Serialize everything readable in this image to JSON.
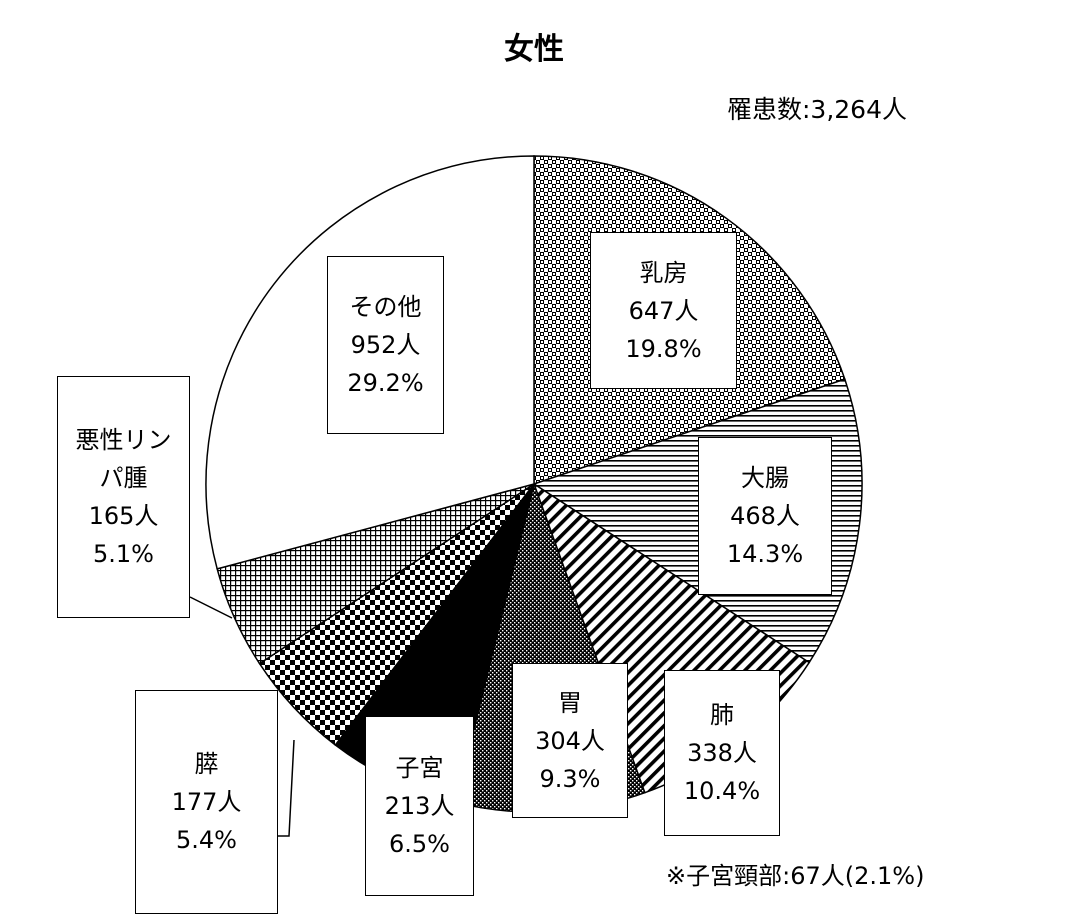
{
  "chart_data": {
    "type": "pie",
    "title": "女性",
    "total_label": "罹患数:3,264人",
    "footnote": "※子宮頸部:67人(2.1%)",
    "slices": [
      {
        "name": "乳房",
        "count": "647人",
        "percent": "19.8%",
        "value": 647,
        "pattern": "checker"
      },
      {
        "name": "大腸",
        "count": "468人",
        "percent": "14.3%",
        "value": 468,
        "pattern": "hlines"
      },
      {
        "name": "肺",
        "count": "338人",
        "percent": "10.4%",
        "value": 338,
        "pattern": "diag"
      },
      {
        "name": "胃",
        "count": "304人",
        "percent": "9.3%",
        "value": 304,
        "pattern": "dots"
      },
      {
        "name": "子宮",
        "count": "213人",
        "percent": "6.5%",
        "value": 213,
        "pattern": "solid"
      },
      {
        "name": "膵",
        "count": "177人",
        "percent": "5.4%",
        "value": 177,
        "pattern": "checker-coarse"
      },
      {
        "name": "悪性リンパ腫",
        "count": "165人",
        "percent": "5.1%",
        "value": 165,
        "pattern": "grid"
      },
      {
        "name": "その他",
        "count": "952人",
        "percent": "29.2%",
        "value": 952,
        "pattern": "none"
      }
    ]
  }
}
